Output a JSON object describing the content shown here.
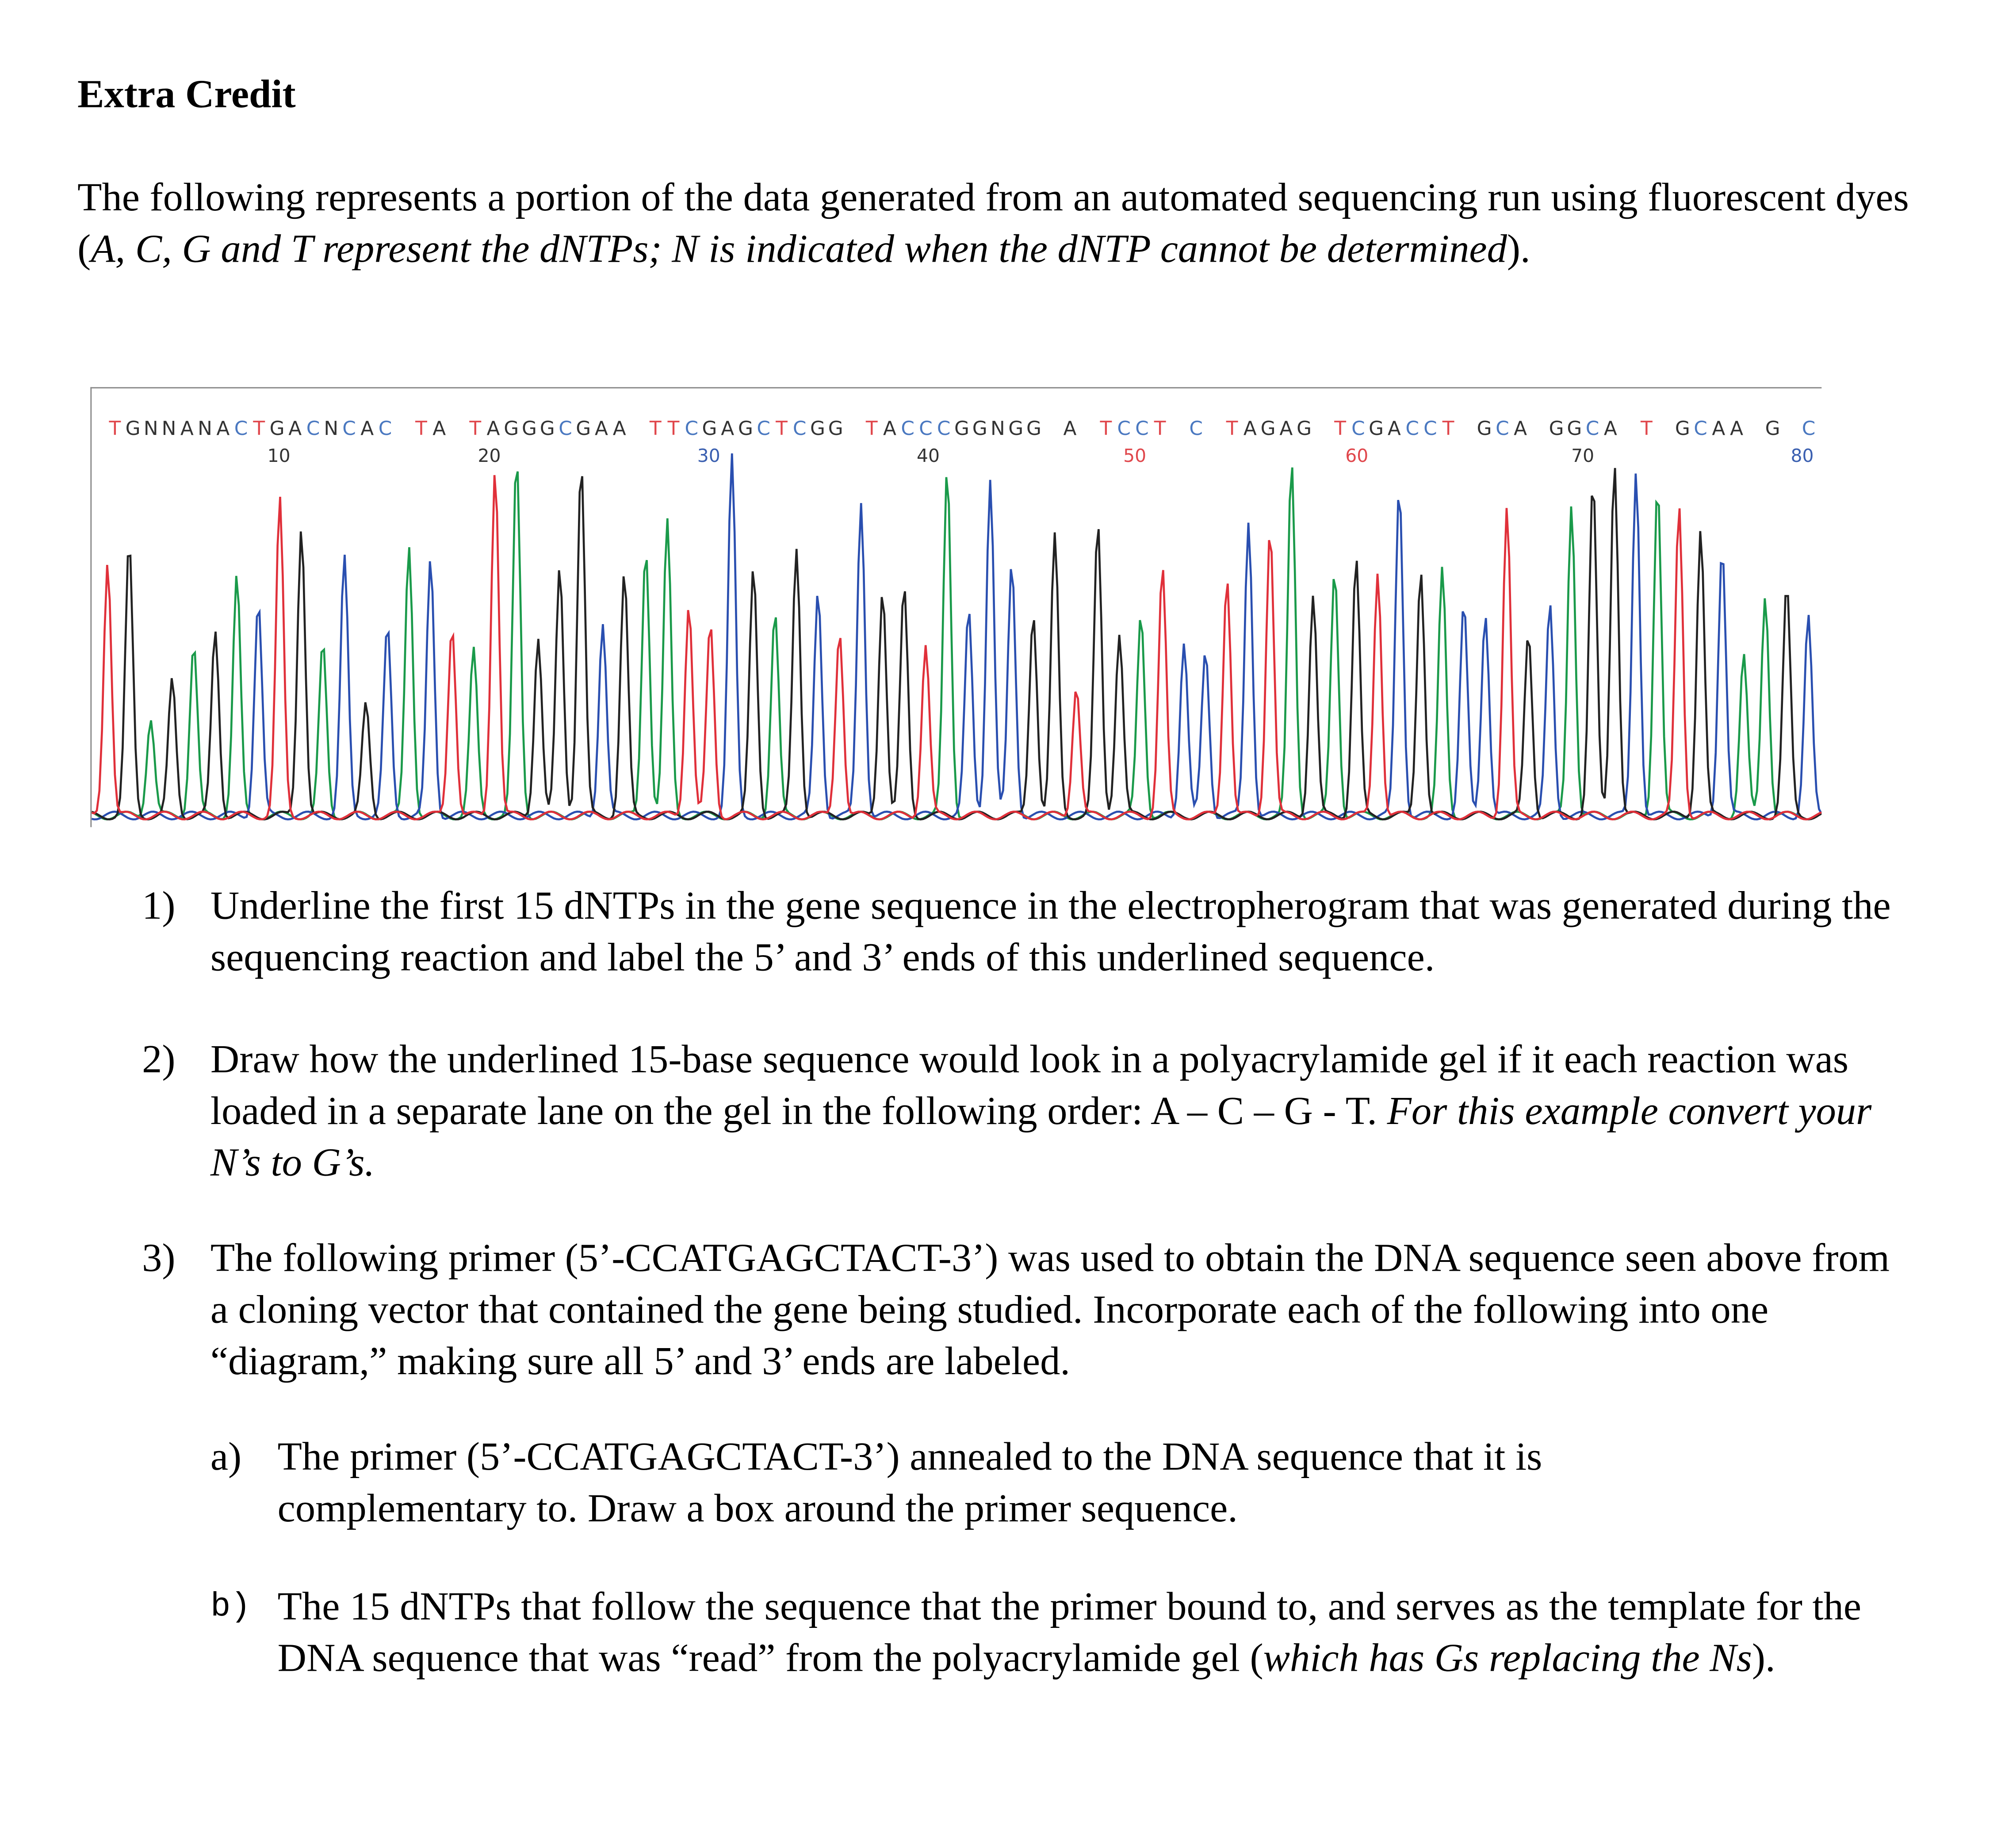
{
  "title": "Extra Credit",
  "intro": {
    "part1": "The following represents a portion of the data generated from an automated sequencing run using fluorescent dyes (",
    "italic": "A, C, G and T represent the dNTPs; N is indicated when the dNTP cannot be determined",
    "part2": ")."
  },
  "electropherogram": {
    "sequence": "TGNNANACTGACNCAC TA TAGGGCGAA TTCGAGCTCGG TACCCGGNGG A TCCT C TAGAG TCGACCT GCA GGCA T GCAA G C",
    "positions": [
      {
        "label": "10",
        "color": "#333333"
      },
      {
        "label": "20",
        "color": "#333333"
      },
      {
        "label": "30",
        "color": "#3a5fb0"
      },
      {
        "label": "40",
        "color": "#333333"
      },
      {
        "label": "50",
        "color": "#e0474c"
      },
      {
        "label": "60",
        "color": "#e0474c"
      },
      {
        "label": "70",
        "color": "#333333"
      },
      {
        "label": "80",
        "color": "#3a5fb0"
      }
    ],
    "colors": {
      "A": "#1a9a4a",
      "C": "#2a4fb0",
      "G": "#222222",
      "T": "#e0303a",
      "N": "#222222"
    },
    "label_colors": {
      "A": "#333333",
      "C": "#4a78c0",
      "G": "#333333",
      "T": "#e0474c",
      "N": "#333333"
    }
  },
  "questions": [
    {
      "num": "1)",
      "text": "Underline the first 15 dNTPs in the gene sequence in the electropherogram that was generated during the sequencing reaction and label the 5’ and 3’ ends of this underlined sequence."
    },
    {
      "num": "2)",
      "text": "Draw how the underlined 15-base sequence would look in a polyacrylamide gel if it each reaction was loaded in a separate lane on the gel in the following order: A – C – G - T. ",
      "italic": "For this example convert your N’s to G’s."
    },
    {
      "num": "3)",
      "text": "The following primer (5’-CCATGAGCTACT-3’) was used to obtain the DNA sequence seen above from a cloning vector that contained the gene being studied.  Incorporate each of the following into one “diagram,” making sure all 5’ and 3’ ends are labeled."
    }
  ],
  "subquestions": [
    {
      "num": "a)",
      "text": "The primer (5’-CCATGAGCTACT-3’) annealed to the DNA sequence that it is complementary to.  Draw a box around the primer sequence."
    },
    {
      "num": "b)",
      "text": "The 15 dNTPs that follow the sequence that the primer bound to, and serves as the template for the DNA sequence that was “read” from the polyacrylamide gel (",
      "italic": "which has Gs replacing the Ns",
      "after": ")."
    }
  ]
}
